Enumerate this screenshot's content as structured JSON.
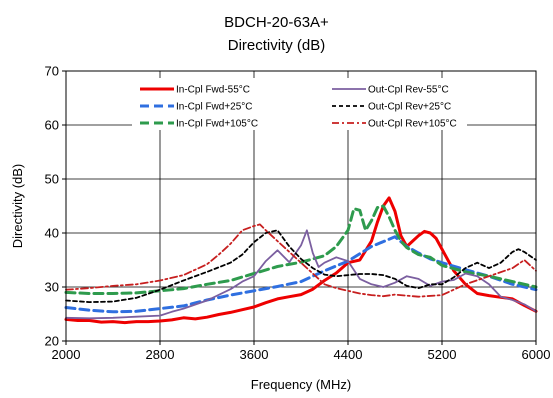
{
  "chart_data": {
    "type": "line",
    "title": "BDCH-20-63A+",
    "subtitle": "Directivity (dB)",
    "xlabel": "Frequency (MHz)",
    "ylabel": "Directivity (dB)",
    "xlim": [
      2000,
      6000
    ],
    "ylim": [
      20,
      70
    ],
    "xticks": [
      "2000",
      "2800",
      "3600",
      "4400",
      "5200",
      "6000"
    ],
    "yticks": [
      "20",
      "30",
      "40",
      "50",
      "60",
      "70"
    ],
    "grid": true,
    "legend_position": "top",
    "series": [
      {
        "name": "In-Cpl Fwd-55°C",
        "color": "#ee0000",
        "dash": "solid",
        "width": 3,
        "x": [
          2000,
          2100,
          2200,
          2300,
          2400,
          2500,
          2600,
          2700,
          2800,
          2900,
          3000,
          3100,
          3200,
          3300,
          3400,
          3500,
          3600,
          3700,
          3800,
          3900,
          4000,
          4100,
          4200,
          4300,
          4400,
          4500,
          4600,
          4650,
          4700,
          4750,
          4800,
          4850,
          4900,
          4950,
          5000,
          5050,
          5100,
          5150,
          5200,
          5300,
          5400,
          5500,
          5600,
          5700,
          5800,
          5900,
          6000
        ],
        "y": [
          24,
          23.8,
          23.8,
          23.5,
          23.6,
          23.4,
          23.6,
          23.6,
          23.7,
          23.9,
          24.3,
          24.1,
          24.4,
          24.9,
          25.3,
          25.8,
          26.3,
          27.1,
          27.8,
          28.2,
          28.6,
          29.6,
          31.2,
          32.6,
          34.5,
          35,
          38.5,
          42,
          45,
          46.5,
          44,
          39.5,
          37.5,
          38.5,
          39.5,
          40.3,
          40,
          39,
          37,
          33,
          30.5,
          28.8,
          28.4,
          28.1,
          27.8,
          26.6,
          25.5
        ]
      },
      {
        "name": "In-Cpl Fwd+25°C",
        "color": "#2f6fe0",
        "dash": "dash",
        "width": 3,
        "x": [
          2000,
          2200,
          2400,
          2600,
          2800,
          3000,
          3200,
          3400,
          3600,
          3800,
          4000,
          4200,
          4400,
          4600,
          4800,
          4900,
          5000,
          5100,
          5200,
          5400,
          5600,
          5800,
          6000
        ],
        "y": [
          26.2,
          25.7,
          25.4,
          25.5,
          26,
          26.5,
          27.6,
          28.5,
          29.3,
          30.1,
          31,
          33,
          34.8,
          37.5,
          39.3,
          37.5,
          36.3,
          35.2,
          34.5,
          33.2,
          32,
          30.5,
          29.5
        ]
      },
      {
        "name": "In-Cpl Fwd+105°C",
        "color": "#2e9b4d",
        "dash": "dash",
        "width": 3,
        "x": [
          2000,
          2200,
          2400,
          2600,
          2800,
          3000,
          3200,
          3400,
          3600,
          3800,
          4000,
          4200,
          4300,
          4400,
          4450,
          4500,
          4550,
          4600,
          4650,
          4700,
          4750,
          4800,
          4850,
          4900,
          5000,
          5100,
          5200,
          5400,
          5600,
          5800,
          6000
        ],
        "y": [
          29,
          28.8,
          28.8,
          28.9,
          29.3,
          29.7,
          30.5,
          31.2,
          32.5,
          33.8,
          34.6,
          35.8,
          37.5,
          40.5,
          44.5,
          44.2,
          40.5,
          42.3,
          44.7,
          45,
          43,
          40.5,
          38.5,
          37.3,
          36,
          35.5,
          34,
          32.8,
          32,
          31,
          30
        ]
      },
      {
        "name": "Out-Cpl Rev-55°C",
        "color": "#7b5fa0",
        "dash": "solid",
        "width": 1.8,
        "x": [
          2000,
          2200,
          2400,
          2600,
          2800,
          2900,
          3000,
          3200,
          3400,
          3500,
          3600,
          3700,
          3800,
          3900,
          4000,
          4050,
          4100,
          4150,
          4200,
          4300,
          4400,
          4500,
          4600,
          4700,
          4800,
          4900,
          5000,
          5100,
          5200,
          5300,
          5400,
          5500,
          5600,
          5700,
          5800,
          5900,
          6000
        ],
        "y": [
          24.3,
          24.2,
          24.3,
          24.5,
          24.7,
          25.4,
          26,
          27.5,
          29.6,
          31,
          32,
          34.8,
          36.8,
          34.6,
          37.7,
          40.5,
          36.3,
          33.7,
          34.5,
          35.5,
          34.8,
          31.5,
          30.5,
          30,
          30.8,
          32,
          31.5,
          30.2,
          31,
          31.3,
          32.5,
          32,
          30.5,
          28.2,
          27.6,
          26.8,
          25.5
        ]
      },
      {
        "name": "Out-Cpl Rev+25°C",
        "color": "#000000",
        "dash": "shortdash",
        "width": 1.8,
        "x": [
          2000,
          2200,
          2400,
          2600,
          2800,
          3000,
          3200,
          3400,
          3500,
          3600,
          3700,
          3800,
          3900,
          4000,
          4100,
          4200,
          4300,
          4400,
          4500,
          4600,
          4700,
          4800,
          4900,
          5000,
          5100,
          5200,
          5300,
          5400,
          5500,
          5600,
          5700,
          5800,
          5850,
          5900,
          6000
        ],
        "y": [
          27.5,
          27.2,
          27.3,
          28,
          29.5,
          31.2,
          32.8,
          34.5,
          36,
          38.3,
          40,
          40.5,
          37.5,
          35.2,
          33.5,
          32.3,
          32,
          32.2,
          32.4,
          32.4,
          32.2,
          31.5,
          30.2,
          29.8,
          30.5,
          30.5,
          31.8,
          33.5,
          34.5,
          33.5,
          34.5,
          36.5,
          37,
          36.5,
          35
        ]
      },
      {
        "name": "Out-Cpl Rev+105°C",
        "color": "#c71f1f",
        "dash": "dashdot",
        "width": 1.8,
        "x": [
          2000,
          2200,
          2400,
          2600,
          2800,
          3000,
          3200,
          3300,
          3400,
          3500,
          3600,
          3650,
          3700,
          3800,
          3900,
          4000,
          4100,
          4200,
          4300,
          4400,
          4500,
          4600,
          4700,
          4800,
          5000,
          5200,
          5400,
          5600,
          5800,
          5900,
          6000
        ],
        "y": [
          29.5,
          29.8,
          30.2,
          30.5,
          31.2,
          32.2,
          34.2,
          36,
          38,
          40.5,
          41.3,
          41.6,
          40.5,
          38.5,
          36.5,
          34.5,
          32.5,
          30.5,
          29.8,
          29.3,
          28.8,
          28.5,
          28.3,
          28.6,
          28.2,
          28.5,
          30.5,
          32,
          33.5,
          35,
          33
        ]
      }
    ]
  }
}
